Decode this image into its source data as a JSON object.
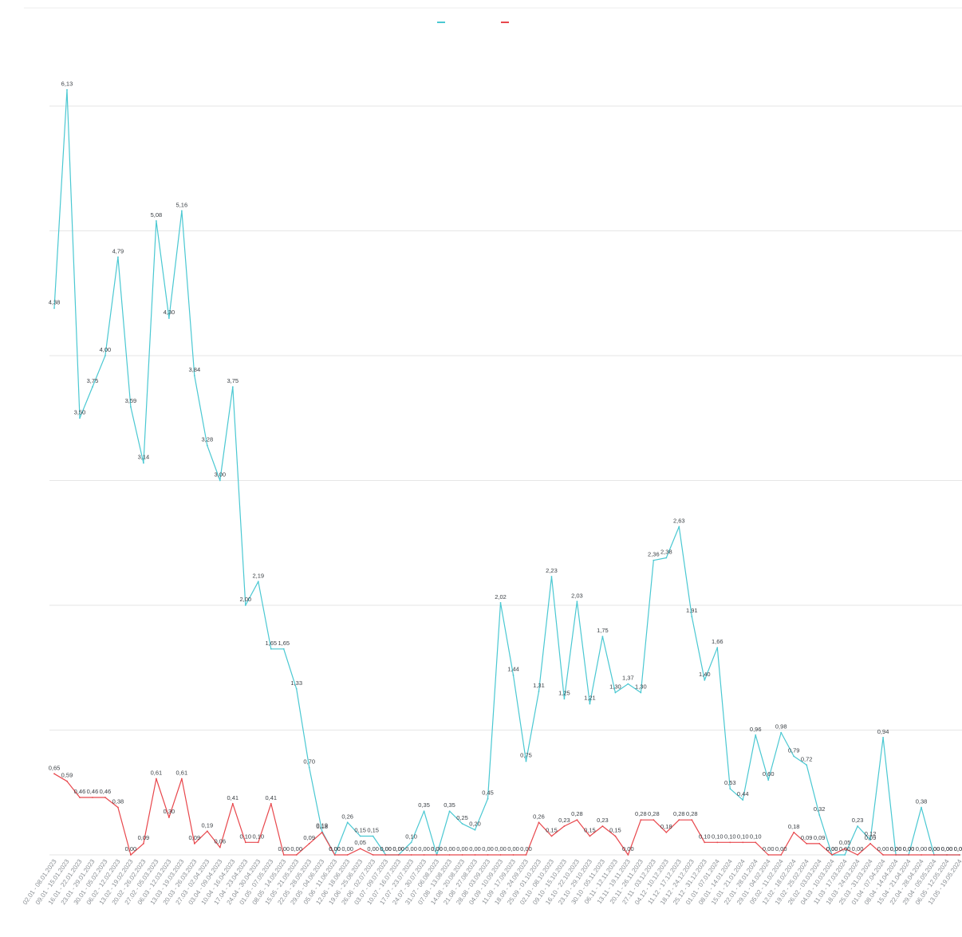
{
  "chart_data": {
    "type": "line",
    "legend": "top-center",
    "grid": true,
    "colors": {
      "series_1": "#4ac8d2",
      "series_2": "#e8474c",
      "grid": "#e6e6e6"
    },
    "ylim": [
      0,
      6
    ],
    "yticks": [
      "",
      "",
      "",
      "",
      "",
      "",
      ""
    ],
    "series": [
      {
        "name": "",
        "color": "#4ac8d2",
        "values": [
          4.38,
          6.13,
          3.5,
          3.75,
          4.0,
          4.79,
          3.59,
          3.14,
          5.08,
          4.3,
          5.16,
          3.84,
          3.28,
          3.0,
          3.75,
          2.0,
          2.19,
          1.65,
          1.65,
          1.33,
          0.7,
          0.19,
          0.0,
          0.26,
          0.15,
          0.15,
          0.0,
          0.0,
          0.1,
          0.35,
          0.0,
          0.35,
          0.25,
          0.2,
          0.45,
          2.02,
          1.44,
          0.75,
          1.31,
          2.23,
          1.25,
          2.03,
          1.21,
          1.75,
          1.3,
          1.37,
          1.3,
          2.36,
          2.38,
          2.63,
          1.91,
          1.4,
          1.66,
          0.53,
          0.44,
          0.96,
          0.6,
          0.98,
          0.79,
          0.72,
          0.32,
          0.0,
          0.0,
          0.23,
          0.12,
          0.94,
          0.0,
          0.0,
          0.38,
          0.0,
          0.0,
          0.0
        ]
      },
      {
        "name": "",
        "color": "#e8474c",
        "values": [
          0.65,
          0.59,
          0.46,
          0.46,
          0.46,
          0.38,
          0.0,
          0.09,
          0.61,
          0.3,
          0.61,
          0.09,
          0.19,
          0.06,
          0.41,
          0.1,
          0.1,
          0.41,
          0.0,
          0.0,
          0.09,
          0.18,
          0.0,
          0.0,
          0.05,
          0.0,
          0.0,
          0.0,
          0.0,
          0.0,
          0.0,
          0.0,
          0.0,
          0.0,
          0.0,
          0.0,
          0.0,
          0.0,
          0.26,
          0.15,
          0.23,
          0.28,
          0.15,
          0.23,
          0.15,
          0.0,
          0.28,
          0.28,
          0.18,
          0.28,
          0.28,
          0.1,
          0.1,
          0.1,
          0.1,
          0.1,
          0.0,
          0.0,
          0.18,
          0.09,
          0.09,
          0.0,
          0.05,
          0.0,
          0.09,
          0.0,
          0.0,
          0.0,
          0.0,
          0.0,
          0.0,
          0.0
        ]
      }
    ],
    "categories": [
      "02.01 - 08.01.2023",
      "09.01 - 15.01.2023",
      "16.01 - 22.01.2023",
      "23.01 - 29.01.2023",
      "30.01 - 05.02.2023",
      "06.02 - 12.02.2023",
      "13.02 - 19.02.2023",
      "20.02 - 26.02.2023",
      "27.02 - 05.03.2023",
      "06.03 - 12.03.2023",
      "13.03 - 19.03.2023",
      "20.03 - 26.03.2023",
      "27.03 - 02.04.2023",
      "03.04 - 09.04.2023",
      "10.04 - 16.04.2023",
      "17.04 - 23.04.2023",
      "24.04 - 30.04.2023",
      "01.05 - 07.05.2023",
      "08.05 - 14.05.2023",
      "15.05 - 21.05.2023",
      "22.05 - 28.05.2023",
      "29.05 - 04.06.2023",
      "05.06 - 11.06.2023",
      "12.06 - 18.06.2023",
      "19.06 - 25.06.2023",
      "26.06 - 02.07.2023",
      "03.07 - 09.07.2023",
      "10.07 - 16.07.2023",
      "17.07 - 23.07.2023",
      "24.07 - 30.07.2023",
      "31.07 - 06.08.2023",
      "07.08 - 13.08.2023",
      "14.08 - 20.08.2023",
      "21.08 - 27.08.2023",
      "28.08 - 03.09.2023",
      "04.09 - 10.09.2023",
      "11.09 - 17.09.2023",
      "18.09 - 24.09.2023",
      "25.09 - 01.10.2023",
      "02.10 - 08.10.2023",
      "09.10 - 15.10.2023",
      "16.10 - 22.10.2023",
      "23.10 - 29.10.2023",
      "30.10 - 05.11.2023",
      "06.11 - 12.11.2023",
      "13.11 - 19.11.2023",
      "20.11 - 26.11.2023",
      "27.11 - 03.12.2023",
      "04.12 - 10.12.2023",
      "11.12 - 17.12.2023",
      "18.12 - 24.12.2023",
      "25.12 - 31.12.2023",
      "01.01 - 07.01.2024",
      "08.01 - 14.01.2024",
      "15.01 - 21.01.2024",
      "22.01 - 28.01.2024",
      "29.01 - 04.02.2024",
      "05.02 - 11.02.2024",
      "12.02 - 18.02.2024",
      "19.02 - 25.02.2024",
      "26.02 - 03.03.2024",
      "04.03 - 10.03.2024",
      "11.03 - 17.03.2024",
      "18.03 - 24.03.2024",
      "25.03 - 31.03.2024",
      "01.04 - 07.04.2024",
      "08.04 - 14.04.2024",
      "15.04 - 21.04.2024",
      "22.04 - 28.04.2024",
      "29.04 - 05.05.2024",
      "06.05 - 12.05.2024",
      "13.05 - 19.05.2024"
    ]
  }
}
